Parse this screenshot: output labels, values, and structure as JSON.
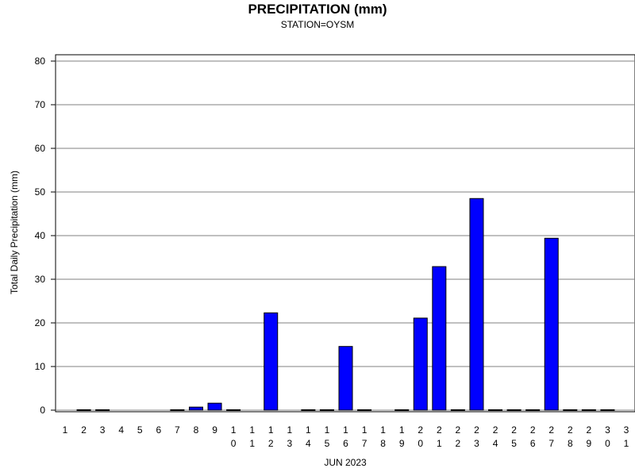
{
  "chart_data": {
    "type": "bar",
    "title": "PRECIPITATION (mm)",
    "subtitle": "STATION=OYSM",
    "xlabel": "JUN 2023",
    "ylabel": "Total Daily Precipitation (mm)",
    "ylim": [
      0,
      80
    ],
    "yticks": [
      "0",
      "10",
      "20",
      "30",
      "40",
      "50",
      "60",
      "70",
      "80"
    ],
    "grid": true,
    "bar_color": "#0000ff",
    "categories": [
      "1",
      "2",
      "3",
      "4",
      "5",
      "6",
      "7",
      "8",
      "9",
      "10",
      "11",
      "12",
      "13",
      "14",
      "15",
      "16",
      "17",
      "18",
      "19",
      "20",
      "21",
      "22",
      "23",
      "24",
      "25",
      "26",
      "27",
      "28",
      "29",
      "30",
      "31"
    ],
    "values": [
      null,
      0.1,
      0.1,
      null,
      null,
      null,
      0.1,
      0.7,
      1.6,
      0.1,
      null,
      22.3,
      null,
      0.1,
      0.1,
      14.6,
      0.1,
      null,
      0.1,
      21.1,
      32.9,
      0.1,
      48.5,
      0.1,
      0.1,
      0.1,
      39.4,
      0.1,
      0.1,
      0.1,
      null
    ]
  }
}
